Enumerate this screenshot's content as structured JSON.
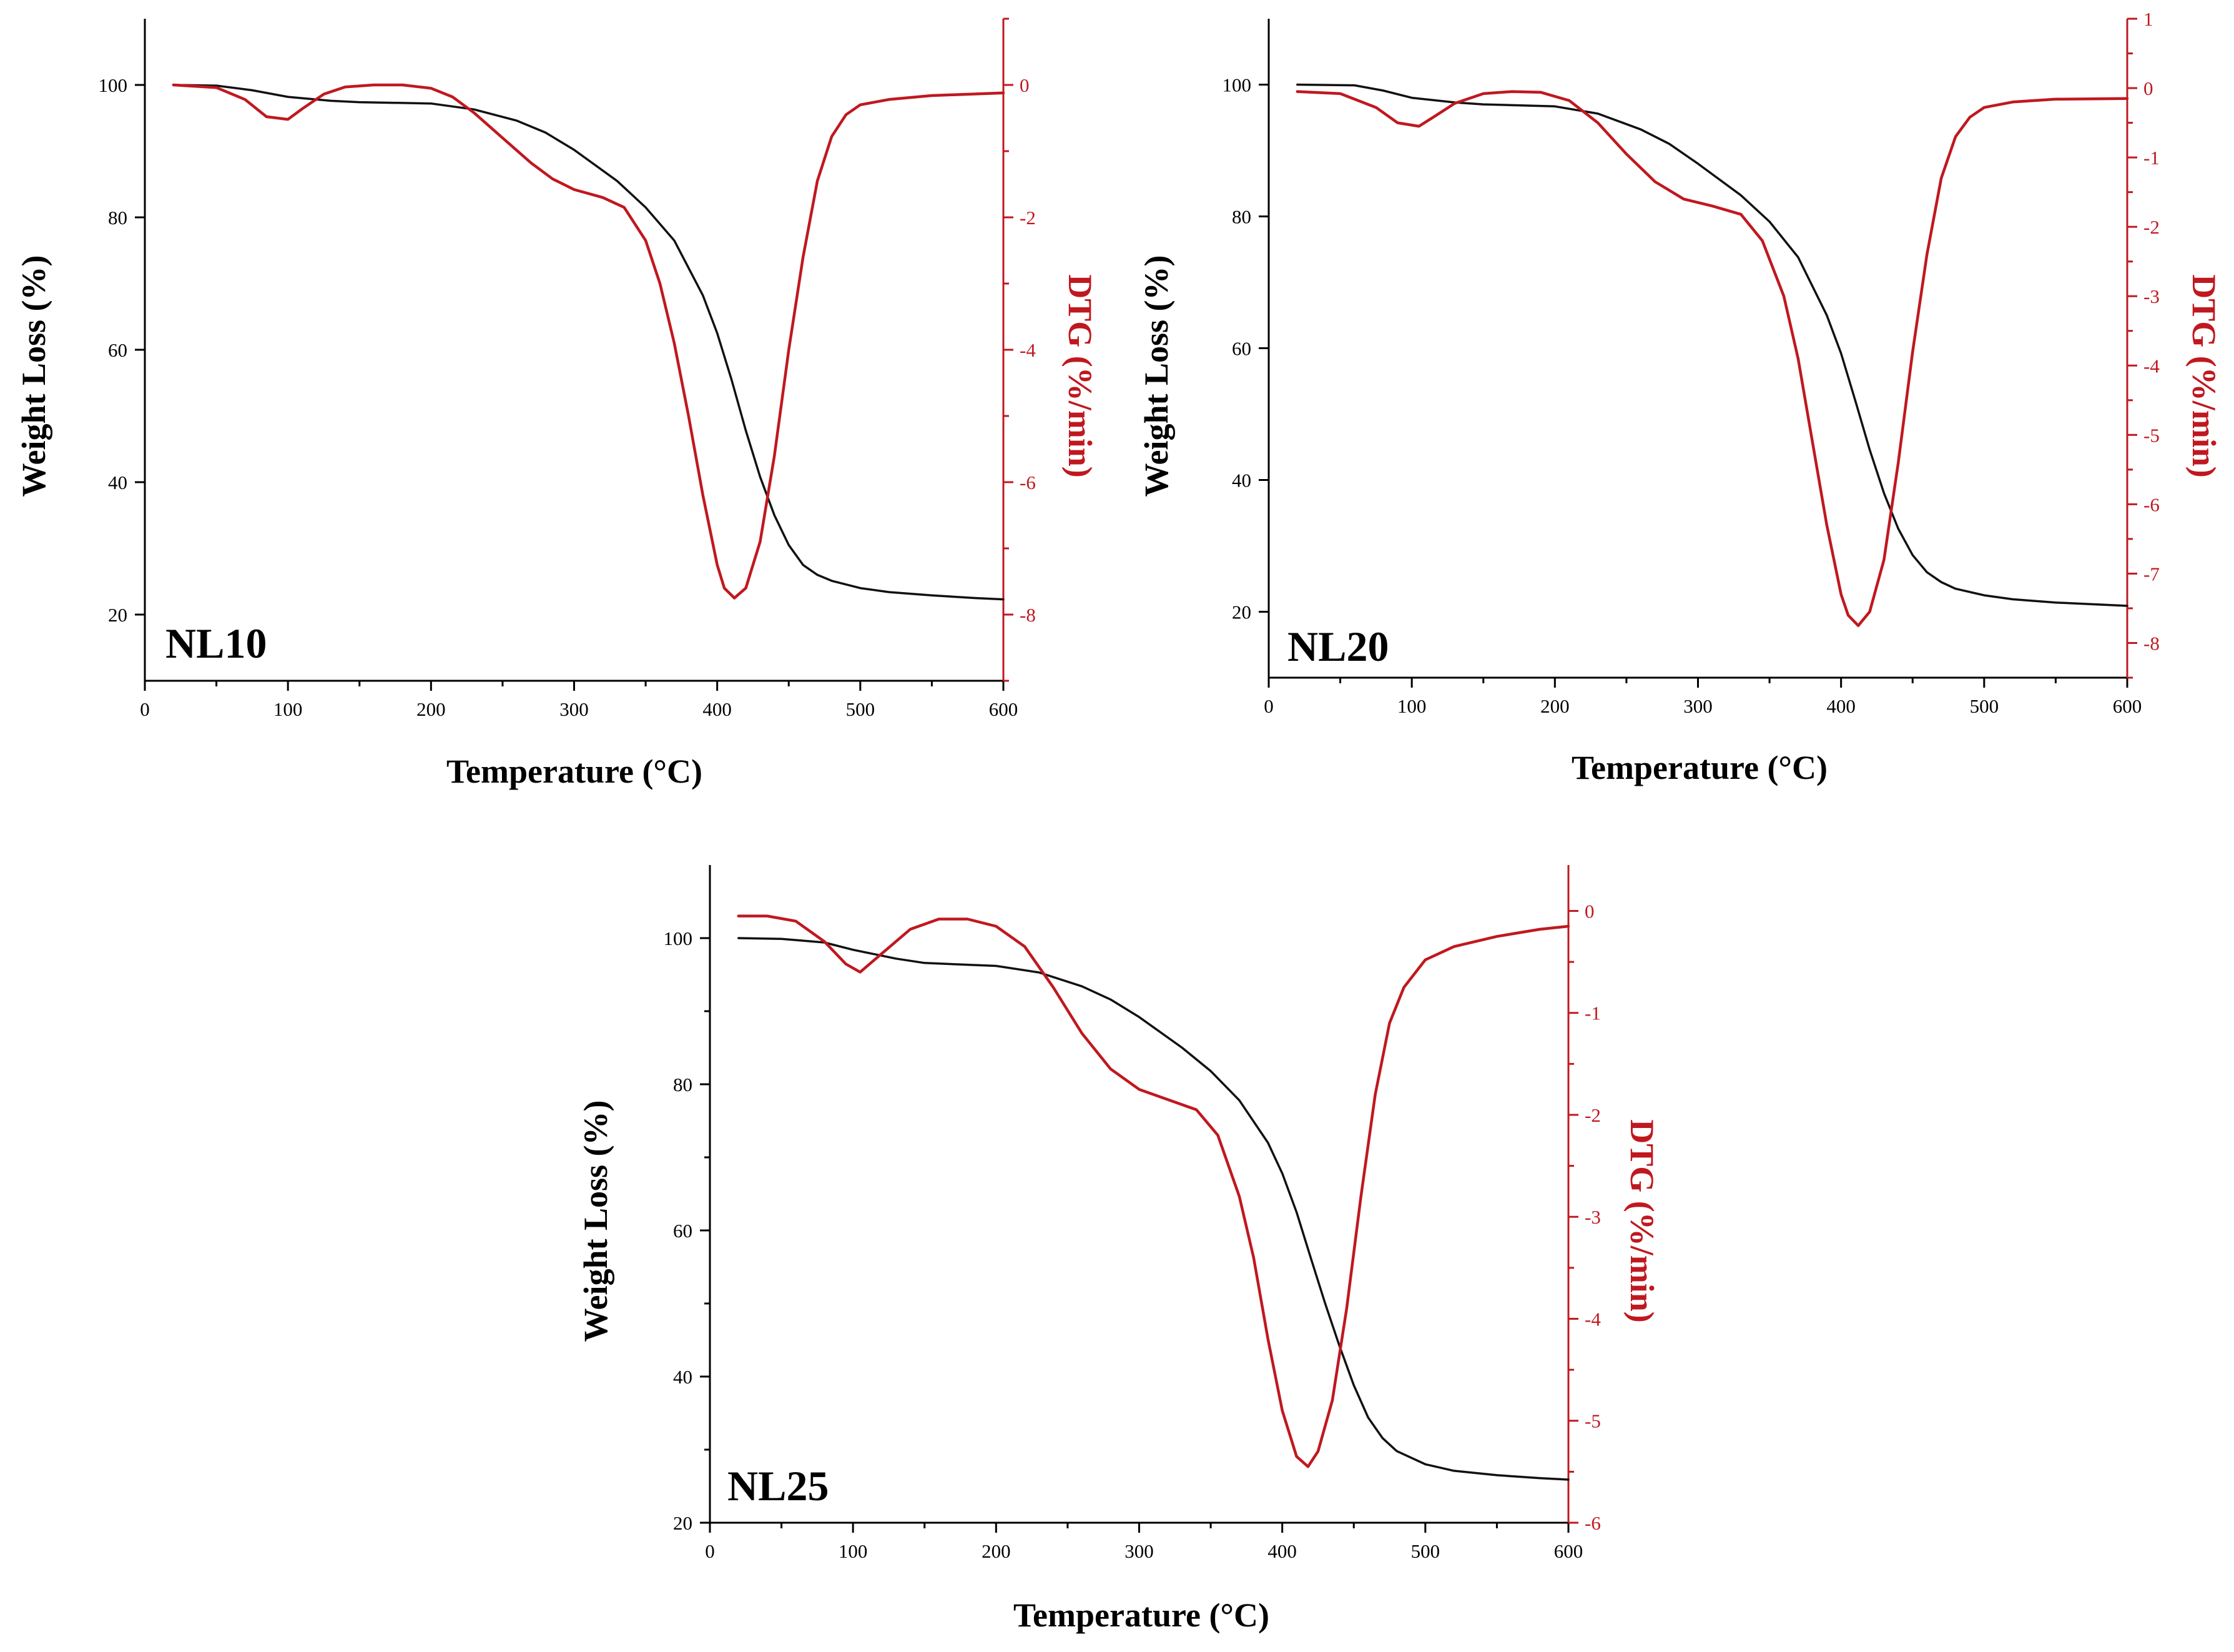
{
  "colors": {
    "tga": "#111111",
    "dtg": "#c0181f"
  },
  "chart_data": [
    {
      "type": "line",
      "label": "NL10",
      "xlabel": "Temperature (°C)",
      "ylabel": "Weight Loss (%)",
      "y2label": "DTG (%/min)",
      "xlim": [
        0,
        600
      ],
      "ylim": [
        10,
        110
      ],
      "y2lim": [
        -9,
        1
      ],
      "xticks": [
        0,
        100,
        200,
        300,
        400,
        500,
        600
      ],
      "yticks": [
        20,
        40,
        60,
        80,
        100
      ],
      "y2ticks": [
        -8,
        -6,
        -4,
        -2,
        0
      ],
      "series": [
        {
          "name": "Weight Loss (%)",
          "axis": "left",
          "x": [
            20,
            50,
            75,
            100,
            130,
            150,
            200,
            230,
            260,
            280,
            300,
            330,
            350,
            370,
            390,
            400,
            410,
            420,
            430,
            440,
            450,
            460,
            470,
            480,
            500,
            520,
            550,
            580,
            600
          ],
          "y": [
            100,
            99.9,
            99.2,
            98.2,
            97.6,
            97.4,
            97.2,
            96.3,
            94.6,
            92.8,
            90.2,
            85.5,
            81.5,
            76.5,
            68.2,
            62.5,
            55.5,
            47.8,
            40.8,
            35.0,
            30.5,
            27.5,
            26.0,
            25.1,
            24.0,
            23.4,
            22.9,
            22.5,
            22.3
          ]
        },
        {
          "name": "DTG (%/min)",
          "axis": "right",
          "x": [
            20,
            50,
            70,
            85,
            100,
            110,
            125,
            140,
            160,
            180,
            200,
            215,
            230,
            250,
            270,
            285,
            300,
            320,
            335,
            350,
            360,
            370,
            380,
            390,
            400,
            405,
            412,
            420,
            430,
            440,
            450,
            460,
            470,
            480,
            490,
            500,
            520,
            550,
            600
          ],
          "y": [
            0,
            -0.04,
            -0.22,
            -0.48,
            -0.52,
            -0.36,
            -0.14,
            -0.03,
            0.0,
            0.0,
            -0.05,
            -0.18,
            -0.42,
            -0.8,
            -1.18,
            -1.42,
            -1.58,
            -1.7,
            -1.85,
            -2.35,
            -3.0,
            -3.9,
            -5.0,
            -6.2,
            -7.25,
            -7.6,
            -7.75,
            -7.6,
            -6.9,
            -5.6,
            -4.0,
            -2.6,
            -1.45,
            -0.78,
            -0.45,
            -0.3,
            -0.22,
            -0.16,
            -0.12
          ]
        }
      ]
    },
    {
      "type": "line",
      "label": "NL20",
      "xlabel": "Temperature (°C)",
      "ylabel": "Weight Loss (%)",
      "y2label": "DTG (%/min)",
      "xlim": [
        0,
        600
      ],
      "ylim": [
        10,
        110
      ],
      "y2lim": [
        -8.5,
        1
      ],
      "xticks": [
        0,
        100,
        200,
        300,
        400,
        500,
        600
      ],
      "yticks": [
        20,
        40,
        60,
        80,
        100
      ],
      "y2ticks": [
        -8,
        -7,
        -6,
        -5,
        -4,
        -3,
        -2,
        -1,
        0,
        1
      ],
      "series": [
        {
          "name": "Weight Loss (%)",
          "axis": "left",
          "x": [
            20,
            60,
            80,
            100,
            130,
            150,
            200,
            230,
            260,
            280,
            300,
            330,
            350,
            370,
            390,
            400,
            410,
            420,
            430,
            440,
            450,
            460,
            470,
            480,
            500,
            520,
            550,
            580,
            600
          ],
          "y": [
            100,
            99.9,
            99.1,
            98.0,
            97.3,
            97.0,
            96.7,
            95.6,
            93.2,
            91.0,
            88.0,
            83.2,
            79.2,
            73.8,
            65.0,
            59.2,
            52.0,
            44.6,
            38.0,
            32.6,
            28.6,
            26.0,
            24.5,
            23.5,
            22.5,
            21.9,
            21.4,
            21.1,
            20.9
          ]
        },
        {
          "name": "DTG (%/min)",
          "axis": "right",
          "x": [
            20,
            50,
            75,
            90,
            105,
            115,
            130,
            150,
            170,
            190,
            210,
            230,
            250,
            270,
            290,
            310,
            330,
            345,
            360,
            370,
            380,
            390,
            400,
            405,
            412,
            420,
            430,
            440,
            450,
            460,
            470,
            480,
            490,
            500,
            520,
            550,
            600
          ],
          "y": [
            -0.05,
            -0.08,
            -0.28,
            -0.5,
            -0.55,
            -0.42,
            -0.22,
            -0.08,
            -0.05,
            -0.06,
            -0.18,
            -0.5,
            -0.95,
            -1.35,
            -1.6,
            -1.7,
            -1.82,
            -2.2,
            -3.0,
            -3.9,
            -5.1,
            -6.3,
            -7.3,
            -7.6,
            -7.75,
            -7.55,
            -6.8,
            -5.4,
            -3.8,
            -2.4,
            -1.3,
            -0.7,
            -0.42,
            -0.28,
            -0.2,
            -0.16,
            -0.15
          ]
        }
      ]
    },
    {
      "type": "line",
      "label": "NL25",
      "xlabel": "Temperature (°C)",
      "ylabel": "Weight Loss (%)",
      "y2label": "DTG (%/min)",
      "xlim": [
        0,
        600
      ],
      "ylim": [
        20,
        110
      ],
      "y2lim": [
        -6,
        0.45
      ],
      "xticks": [
        0,
        100,
        200,
        300,
        400,
        500,
        600
      ],
      "yticks": [
        20,
        40,
        60,
        80,
        100
      ],
      "y2ticks": [
        -6,
        -5,
        -4,
        -3,
        -2,
        -1,
        0
      ],
      "series": [
        {
          "name": "Weight Loss (%)",
          "axis": "left",
          "x": [
            20,
            50,
            80,
            100,
            130,
            150,
            200,
            230,
            260,
            280,
            300,
            330,
            350,
            370,
            390,
            400,
            410,
            420,
            430,
            440,
            450,
            460,
            470,
            480,
            500,
            520,
            550,
            580,
            600
          ],
          "y": [
            100,
            99.9,
            99.4,
            98.4,
            97.2,
            96.6,
            96.2,
            95.3,
            93.4,
            91.6,
            89.2,
            85.0,
            81.8,
            77.8,
            72.0,
            67.8,
            62.5,
            56.2,
            50.0,
            44.2,
            38.8,
            34.4,
            31.6,
            29.8,
            28.0,
            27.1,
            26.5,
            26.1,
            25.9
          ]
        },
        {
          "name": "DTG (%/min)",
          "axis": "right",
          "x": [
            20,
            40,
            60,
            80,
            95,
            105,
            120,
            140,
            160,
            180,
            200,
            220,
            240,
            260,
            280,
            300,
            320,
            340,
            355,
            370,
            380,
            390,
            400,
            410,
            418,
            425,
            435,
            445,
            455,
            465,
            475,
            485,
            500,
            520,
            550,
            580,
            600
          ],
          "y": [
            -0.05,
            -0.05,
            -0.1,
            -0.3,
            -0.52,
            -0.6,
            -0.42,
            -0.18,
            -0.08,
            -0.08,
            -0.15,
            -0.35,
            -0.75,
            -1.2,
            -1.55,
            -1.75,
            -1.85,
            -1.95,
            -2.2,
            -2.8,
            -3.4,
            -4.2,
            -4.9,
            -5.35,
            -5.45,
            -5.3,
            -4.8,
            -3.9,
            -2.8,
            -1.8,
            -1.1,
            -0.75,
            -0.48,
            -0.35,
            -0.25,
            -0.18,
            -0.15
          ]
        }
      ]
    }
  ]
}
